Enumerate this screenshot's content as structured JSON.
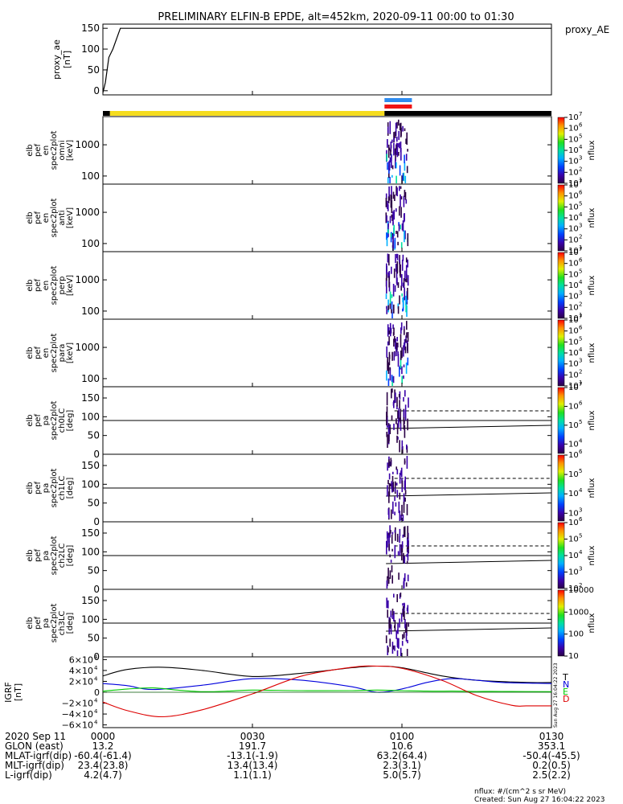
{
  "title": "PRELIMINARY ELFIN-B EPDE, alt=452km, 2020-09-11 00:00 to 01:30",
  "time_axis": {
    "start_minutes": 0,
    "end_minutes": 90,
    "tick_labels": [
      "0000",
      "0030",
      "0100",
      "0130"
    ],
    "tick_minutes": [
      0,
      30,
      60,
      90
    ]
  },
  "colors": {
    "ae_line": "#000000",
    "sunlit_bar": "#f5dc1e",
    "eclipse_bar": "#000000",
    "science_bar_blue": "#2f8cf0",
    "science_bar_red": "#f01414",
    "igrf_T": "#000000",
    "igrf_N": "#0000dd",
    "igrf_E": "#00cc00",
    "igrf_D": "#dd0000"
  },
  "bars": {
    "sunlit": {
      "from_minutes": 1.4,
      "to_minutes": 56.5
    },
    "eclipse": [
      {
        "from_minutes": 0,
        "to_minutes": 1.4
      },
      {
        "from_minutes": 56.5,
        "to_minutes": 90
      }
    ],
    "science": {
      "from_minutes": 56.5,
      "to_minutes": 62.0
    }
  },
  "chart_data": [
    {
      "type": "line",
      "id": "ae",
      "ylabel_lines": [
        "proxy_ae",
        "[nT]"
      ],
      "legend": "proxy_AE",
      "ylim": [
        -10,
        160
      ],
      "yticks": [
        0,
        50,
        100,
        150
      ],
      "yticklabels": [
        "0",
        "50",
        "100",
        "150"
      ],
      "x": [
        0,
        0.5,
        1.2,
        2.0,
        3.5,
        90
      ],
      "y": [
        -5,
        20,
        80,
        100,
        150,
        150
      ]
    },
    {
      "type": "heatmap",
      "id": "omni",
      "ylabel_lines": [
        "elb",
        "pef",
        "en",
        "spec2plot",
        "omni",
        "[keV]"
      ],
      "ylim_log": [
        55,
        8000
      ],
      "yticks": [
        100,
        1000
      ],
      "yticklabels": [
        "100",
        "1000"
      ],
      "colorbar": {
        "label": "nflux",
        "tick_labels": [
          "10",
          "10",
          "10",
          "10",
          "10",
          "10",
          "10"
        ],
        "tick_exponents": [
          "1",
          "2",
          "3",
          "4",
          "5",
          "6",
          "7"
        ],
        "range_log10": [
          1,
          7
        ]
      }
    },
    {
      "type": "heatmap",
      "id": "anti",
      "ylabel_lines": [
        "elb",
        "pef",
        "en",
        "spec2plot",
        "anti",
        "[keV]"
      ],
      "ylim_log": [
        55,
        8000
      ],
      "yticks": [
        100,
        1000
      ],
      "yticklabels": [
        "100",
        "1000"
      ],
      "colorbar": {
        "label": "nflux",
        "tick_labels": [
          "10",
          "10",
          "10",
          "10",
          "10",
          "10",
          "10"
        ],
        "tick_exponents": [
          "1",
          "2",
          "3",
          "4",
          "5",
          "6",
          "7"
        ],
        "range_log10": [
          1,
          7
        ]
      }
    },
    {
      "type": "heatmap",
      "id": "perp",
      "ylabel_lines": [
        "elb",
        "pef",
        "en",
        "spec2plot",
        "perp",
        "[keV]"
      ],
      "ylim_log": [
        55,
        8000
      ],
      "yticks": [
        100,
        1000
      ],
      "yticklabels": [
        "100",
        "1000"
      ],
      "colorbar": {
        "label": "nflux",
        "tick_labels": [
          "10",
          "10",
          "10",
          "10",
          "10",
          "10",
          "10"
        ],
        "tick_exponents": [
          "1",
          "2",
          "3",
          "4",
          "5",
          "6",
          "7"
        ],
        "range_log10": [
          1,
          7
        ]
      }
    },
    {
      "type": "heatmap",
      "id": "para",
      "ylabel_lines": [
        "elb",
        "pef",
        "en",
        "spec2plot",
        "para",
        "[keV]"
      ],
      "ylim_log": [
        55,
        8000
      ],
      "yticks": [
        100,
        1000
      ],
      "yticklabels": [
        "100",
        "1000"
      ],
      "colorbar": {
        "label": "nflux",
        "tick_labels": [
          "10",
          "10",
          "10",
          "10",
          "10",
          "10",
          "10"
        ],
        "tick_exponents": [
          "1",
          "2",
          "3",
          "4",
          "5",
          "6",
          "7"
        ],
        "range_log10": [
          1,
          7
        ]
      }
    },
    {
      "type": "heatmap",
      "id": "ch0LC",
      "ylabel_lines": [
        "elb",
        "pef",
        "pa",
        "spec2plot",
        "ch0LC",
        "[deg]"
      ],
      "ylim": [
        0,
        180
      ],
      "yticks": [
        0,
        50,
        100,
        150
      ],
      "yticklabels": [
        "0",
        "50",
        "100",
        "150"
      ],
      "hline": 90,
      "colorbar": {
        "label": "nflux",
        "tick_labels": [
          "10",
          "10",
          "10",
          "10"
        ],
        "tick_exponents": [
          "4",
          "5",
          "6",
          "7"
        ],
        "range_log10": [
          3.5,
          7
        ]
      }
    },
    {
      "type": "heatmap",
      "id": "ch1LC",
      "ylabel_lines": [
        "elb",
        "pef",
        "pa",
        "spec2plot",
        "ch1LC",
        "[deg]"
      ],
      "ylim": [
        0,
        180
      ],
      "yticks": [
        0,
        50,
        100,
        150
      ],
      "yticklabels": [
        "0",
        "50",
        "100",
        "150"
      ],
      "hline": 90,
      "colorbar": {
        "label": "nflux",
        "tick_labels": [
          "10",
          "10",
          "10",
          "10"
        ],
        "tick_exponents": [
          "3",
          "4",
          "5",
          "6"
        ],
        "range_log10": [
          2.6,
          6
        ]
      }
    },
    {
      "type": "heatmap",
      "id": "ch2LC",
      "ylabel_lines": [
        "elb",
        "pef",
        "pa",
        "spec2plot",
        "ch2LC",
        "[deg]"
      ],
      "ylim": [
        0,
        180
      ],
      "yticks": [
        0,
        50,
        100,
        150
      ],
      "yticklabels": [
        "0",
        "50",
        "100",
        "150"
      ],
      "hline": 90,
      "colorbar": {
        "label": "nflux",
        "tick_labels": [
          "10",
          "10",
          "10",
          "10",
          "10"
        ],
        "tick_exponents": [
          "2",
          "3",
          "4",
          "5",
          "6"
        ],
        "range_log10": [
          2,
          6
        ]
      }
    },
    {
      "type": "heatmap",
      "id": "ch3LC",
      "ylabel_lines": [
        "elb",
        "pef",
        "pa",
        "spec2plot",
        "ch3LC",
        "[deg]"
      ],
      "ylim": [
        0,
        180
      ],
      "yticks": [
        0,
        50,
        100,
        150
      ],
      "yticklabels": [
        "0",
        "50",
        "100",
        "150"
      ],
      "hline": 90,
      "colorbar": {
        "label": "nflux",
        "tick_labels": [
          "10",
          "100",
          "1000",
          "10000"
        ],
        "tick_exponents": [],
        "range_log10": [
          1,
          4
        ]
      }
    },
    {
      "type": "line",
      "id": "igrf",
      "ylabel_lines": [
        "IGRF",
        "[nT]"
      ],
      "ylim": [
        -65000,
        65000
      ],
      "yticks": [
        -60000,
        -40000,
        -20000,
        0,
        20000,
        40000,
        60000
      ],
      "yticklabels": [
        "−6×10",
        "−4×10",
        "−2×10",
        "0",
        "2×10",
        "4×10",
        "6×10"
      ],
      "ytick_exponents": [
        "4",
        "4",
        "4",
        "",
        "4",
        "4",
        "4"
      ],
      "legend": [
        "T",
        "N",
        "E",
        "D"
      ],
      "side_text": "Sun Aug 27 16:04:22 2023",
      "series": [
        {
          "name": "T",
          "x": [
            0,
            5,
            12,
            20,
            30,
            40,
            50,
            55,
            60,
            68,
            75,
            85,
            90
          ],
          "y": [
            30000,
            42000,
            46000,
            40000,
            29000,
            35000,
            45000,
            48000,
            45000,
            30000,
            22000,
            18000,
            18000
          ]
        },
        {
          "name": "N",
          "x": [
            0,
            5,
            10,
            20,
            30,
            40,
            50,
            55,
            60,
            65,
            70,
            75,
            80,
            90
          ],
          "y": [
            16000,
            12000,
            5000,
            13000,
            25000,
            22000,
            10000,
            0,
            6000,
            18000,
            25000,
            22000,
            18000,
            16000
          ]
        },
        {
          "name": "E",
          "x": [
            0,
            5,
            10,
            15,
            20,
            25,
            30,
            40,
            50,
            55,
            60,
            65,
            70,
            75,
            80,
            90
          ],
          "y": [
            2000,
            6000,
            8000,
            4000,
            1000,
            2000,
            4000,
            3000,
            3000,
            4000,
            3000,
            2000,
            2000,
            1500,
            1500,
            1000
          ]
        },
        {
          "name": "D",
          "x": [
            0,
            5,
            12,
            20,
            30,
            40,
            50,
            55,
            60,
            68,
            75,
            82,
            85,
            90
          ],
          "y": [
            -18000,
            -34000,
            -45000,
            -32000,
            -3000,
            30000,
            46000,
            48000,
            44000,
            22000,
            -6000,
            -24000,
            -25000,
            -25000
          ]
        }
      ]
    }
  ],
  "footer": {
    "rows": [
      {
        "label": "2020 Sep 11",
        "values": [
          "0000",
          "0030",
          "0100",
          "0130"
        ]
      },
      {
        "label": "GLON (east)",
        "values": [
          "13.2",
          "191.7",
          "10.6",
          "353.1"
        ]
      },
      {
        "label": "MLAT-igrf(dip)",
        "values": [
          "-60.4(-61.4)",
          "-13.1(-1.9)",
          "63.2(64.4)",
          "-50.4(-45.5)"
        ]
      },
      {
        "label": "MLT-igrf(dip)",
        "values": [
          "23.4(23.8)",
          "13.4(13.4)",
          "2.3(3.1)",
          "0.2(0.5)"
        ]
      },
      {
        "label": "L-igrf(dip)",
        "values": [
          "4.2(4.7)",
          "1.1(1.1)",
          "5.0(5.7)",
          "2.5(2.2)"
        ]
      }
    ],
    "units_note": "nflux: #/(cm^2 s sr MeV)",
    "created": "Created: Sun Aug 27 16:04:22 2023"
  }
}
